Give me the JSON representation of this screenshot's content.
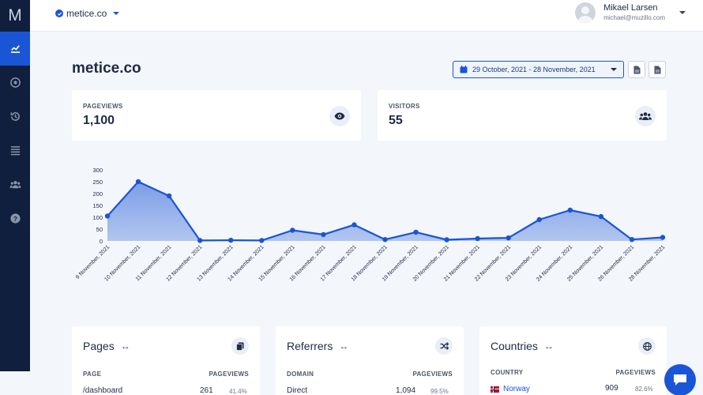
{
  "app": {
    "logo": "M"
  },
  "topbar": {
    "site_name": "metice.co",
    "user_name": "Mikael Larsen",
    "user_email": "michael@muzillo.com"
  },
  "header": {
    "title": "metice.co",
    "date_range": "29 October, 2021 - 28 November, 2021"
  },
  "stats": {
    "pageviews_label": "PAGEVIEWS",
    "pageviews_value": "1,100",
    "visitors_label": "VISITORS",
    "visitors_value": "55"
  },
  "chart_data": {
    "type": "area",
    "title": "",
    "xlabel": "",
    "ylabel": "",
    "ylim": [
      0,
      300
    ],
    "yticks": [
      0,
      50,
      100,
      150,
      200,
      250,
      300
    ],
    "categories": [
      "9 November, 2021",
      "10 November, 2021",
      "11 November, 2021",
      "12 November, 2021",
      "13 November, 2021",
      "14 November, 2021",
      "15 November, 2021",
      "16 November, 2021",
      "17 November, 2021",
      "18 November, 2021",
      "19 November, 2021",
      "20 November, 2021",
      "21 November, 2021",
      "22 November, 2021",
      "23 November, 2021",
      "24 November, 2021",
      "25 November, 2021",
      "26 November, 2021",
      "28 November, 2021"
    ],
    "series": [
      {
        "values": [
          105,
          250,
          190,
          2,
          3,
          2,
          45,
          27,
          68,
          6,
          37,
          5,
          10,
          13,
          90,
          130,
          103,
          6,
          15
        ]
      }
    ],
    "colors": {
      "line": "#1a55d6",
      "fill": "#1a55d6"
    }
  },
  "panels": {
    "pages": {
      "title": "Pages",
      "col1": "PAGE",
      "col2": "PAGEVIEWS",
      "row1_name": "/dashboard",
      "row1_value": "261",
      "row1_pct": "41.4%"
    },
    "referrers": {
      "title": "Referrers",
      "col1": "DOMAIN",
      "col2": "PAGEVIEWS",
      "row1_name": "Direct",
      "row1_value": "1,094",
      "row1_pct": "99.5%"
    },
    "countries": {
      "title": "Countries",
      "col1": "COUNTRY",
      "col2": "PAGEVIEWS",
      "row1_name": "Norway",
      "row1_value": "909",
      "row1_pct": "82.6%"
    }
  },
  "colors": {
    "accent": "#1a55d6",
    "sidebar": "#0f1f3d",
    "background": "#f3f6fb"
  }
}
